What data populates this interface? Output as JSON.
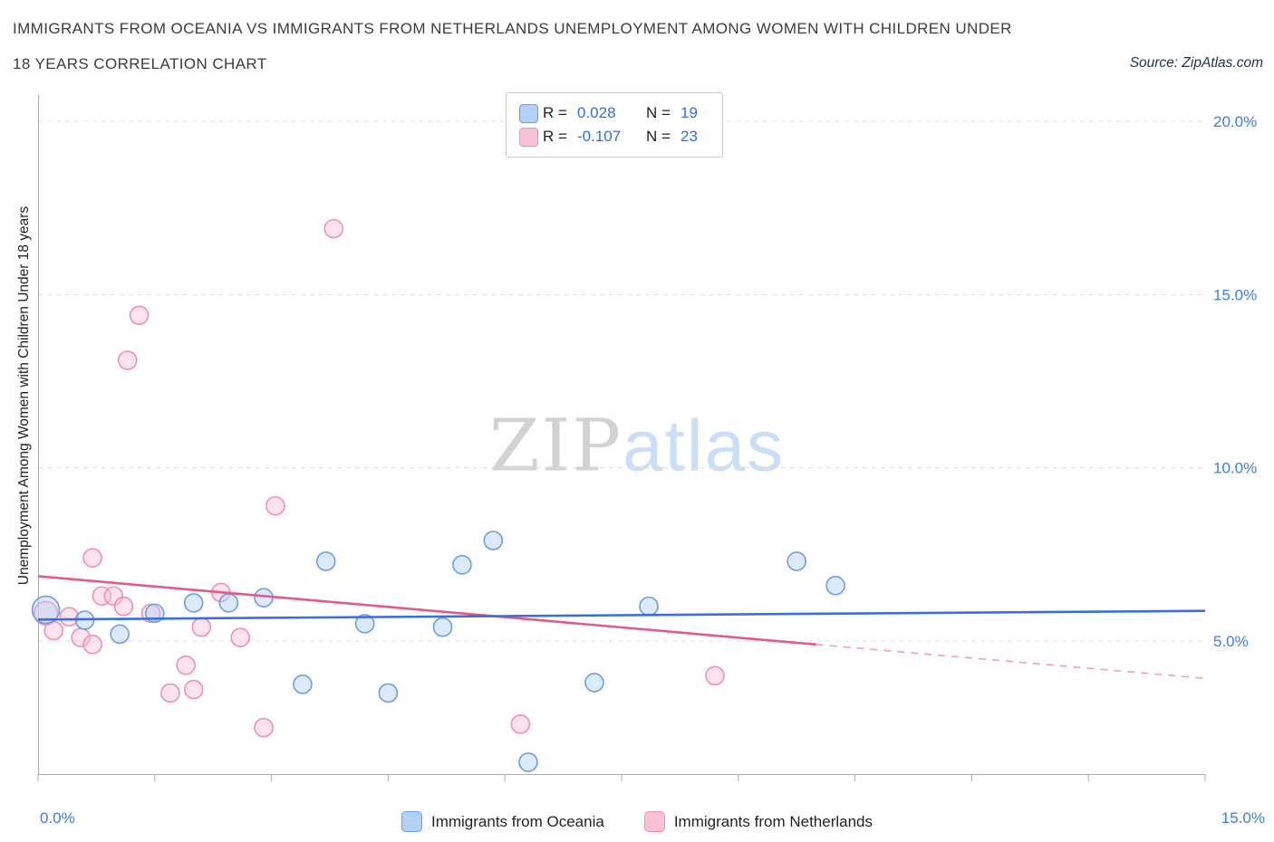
{
  "page": {
    "title_line1": "IMMIGRANTS FROM OCEANIA VS IMMIGRANTS FROM NETHERLANDS UNEMPLOYMENT AMONG WOMEN WITH CHILDREN UNDER",
    "title_line2": "18 YEARS CORRELATION CHART",
    "source": "Source: ZipAtlas.com",
    "watermark_zip": "ZIP",
    "watermark_atlas": "atlas"
  },
  "colors": {
    "tick_label": "#3b7de0",
    "grid": "#dcdcdc",
    "axis": "#ababab",
    "legend_value": "#2e6fe0"
  },
  "legend_box": {
    "rows": [
      {
        "r_label": "R =",
        "r_value": "0.028",
        "n_label": "N =",
        "n_value": "19"
      },
      {
        "r_label": "R =",
        "r_value": "-0.107",
        "n_label": "N =",
        "n_value": "23"
      }
    ]
  },
  "bottom_legend": {
    "items": [
      {
        "label": "Immigrants from Oceania"
      },
      {
        "label": "Immigrants from Netherlands"
      }
    ]
  },
  "chart_data": {
    "type": "scatter",
    "title": "Immigrants from Oceania vs Immigrants from Netherlands Unemployment Among Women with Children Under 18 years",
    "ylabel": "Unemployment Among Women with Children Under 18 years",
    "x_unit": "%",
    "y_unit": "%",
    "xlim": [
      0,
      15
    ],
    "ylim": [
      1,
      20.6
    ],
    "grid": true,
    "legend_position": "bottom",
    "y_ticks": [
      {
        "value": 5,
        "label": "5.0%"
      },
      {
        "value": 10,
        "label": "10.0%"
      },
      {
        "value": 15,
        "label": "15.0%"
      },
      {
        "value": 20,
        "label": "20.0%"
      }
    ],
    "x_ticks": [
      {
        "value": 0,
        "label": "0.0%"
      },
      {
        "value": 15,
        "label": "15.0%"
      }
    ],
    "series": [
      {
        "name": "Immigrants from Oceania",
        "R": 0.028,
        "N": 19,
        "marker_fill": "#b3d0f7",
        "marker_stroke": "#6c9ce8",
        "trend_color": "#3a6fd8",
        "large_point_index": 0,
        "trend": {
          "x_start": 0,
          "y_start": 5.62,
          "x_end": 15,
          "y_end": 5.87
        },
        "points": [
          [
            0.1,
            5.9
          ],
          [
            0.6,
            5.6
          ],
          [
            1.05,
            5.2
          ],
          [
            1.5,
            5.8
          ],
          [
            2.0,
            6.1
          ],
          [
            2.45,
            6.1
          ],
          [
            2.9,
            6.25
          ],
          [
            3.4,
            3.75
          ],
          [
            3.7,
            7.3
          ],
          [
            4.2,
            5.5
          ],
          [
            4.5,
            3.5
          ],
          [
            5.2,
            5.4
          ],
          [
            5.45,
            7.2
          ],
          [
            5.85,
            7.9
          ],
          [
            6.3,
            1.5
          ],
          [
            7.15,
            3.8
          ],
          [
            7.85,
            6.0
          ],
          [
            9.75,
            7.3
          ],
          [
            10.25,
            6.6
          ]
        ]
      },
      {
        "name": "Immigrants from Netherlands",
        "R": -0.107,
        "N": 23,
        "marker_fill": "#f9c2d6",
        "marker_stroke": "#ef8fb4",
        "trend_color": "#e05c87",
        "trend_dash_color": "#ef9db9",
        "large_point_index": 0,
        "trend": {
          "x_start": 0,
          "y_start": 6.87,
          "x_end": 10,
          "y_end": 4.9,
          "x_dash_end": 15,
          "y_dash_end": 3.92
        },
        "points": [
          [
            0.1,
            5.8
          ],
          [
            0.2,
            5.3
          ],
          [
            0.4,
            5.7
          ],
          [
            0.55,
            5.1
          ],
          [
            0.7,
            4.9
          ],
          [
            0.7,
            7.4
          ],
          [
            0.82,
            6.3
          ],
          [
            0.97,
            6.3
          ],
          [
            1.1,
            6.0
          ],
          [
            1.15,
            13.1
          ],
          [
            1.3,
            14.4
          ],
          [
            1.45,
            5.8
          ],
          [
            1.7,
            3.5
          ],
          [
            1.9,
            4.3
          ],
          [
            2.0,
            3.6
          ],
          [
            2.1,
            5.4
          ],
          [
            2.35,
            6.4
          ],
          [
            2.6,
            5.1
          ],
          [
            2.9,
            2.5
          ],
          [
            3.05,
            8.9
          ],
          [
            3.8,
            16.9
          ],
          [
            6.2,
            2.6
          ],
          [
            8.7,
            4.0
          ]
        ]
      }
    ]
  }
}
